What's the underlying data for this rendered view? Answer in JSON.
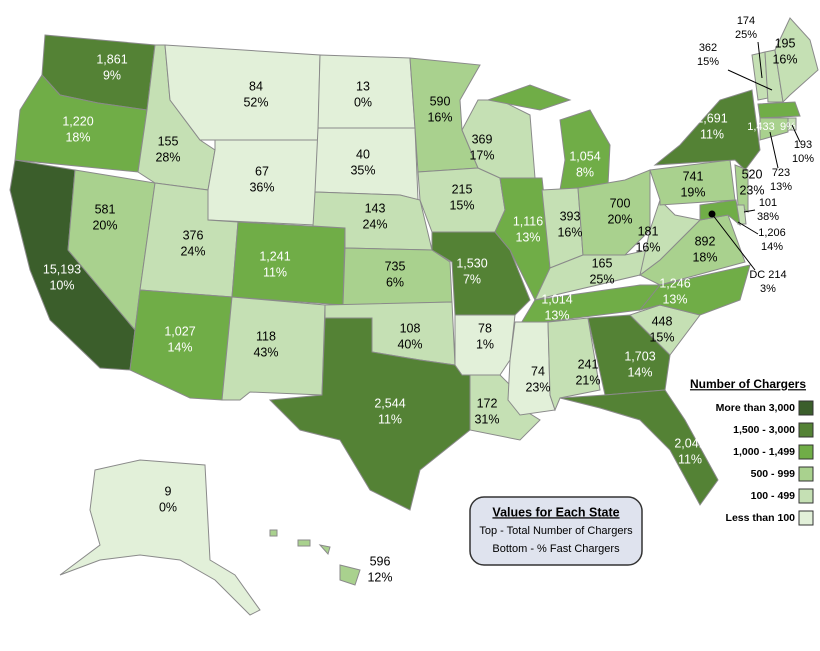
{
  "states": [
    {
      "total": "1,861",
      "fast": "9%",
      "color": "#548235"
    },
    {
      "total": "1,220",
      "fast": "18%",
      "color": "#70ad47"
    },
    {
      "total": "15,193",
      "fast": "10%",
      "color": "#3b5e2b"
    },
    {
      "total": "581",
      "fast": "20%",
      "color": "#a9d18e"
    },
    {
      "total": "155",
      "fast": "28%",
      "color": "#c5e0b4"
    },
    {
      "total": "84",
      "fast": "52%",
      "color": "#e2f0d9"
    },
    {
      "total": "67",
      "fast": "36%",
      "color": "#e2f0d9"
    },
    {
      "total": "376",
      "fast": "24%",
      "color": "#c5e0b4"
    },
    {
      "total": "1,241",
      "fast": "11%",
      "color": "#70ad47"
    },
    {
      "total": "1,027",
      "fast": "14%",
      "color": "#70ad47"
    },
    {
      "total": "118",
      "fast": "43%",
      "color": "#c5e0b4"
    },
    {
      "total": "13",
      "fast": "0%",
      "color": "#e2f0d9"
    },
    {
      "total": "40",
      "fast": "35%",
      "color": "#e2f0d9"
    },
    {
      "total": "143",
      "fast": "24%",
      "color": "#c5e0b4"
    },
    {
      "total": "735",
      "fast": "6%",
      "color": "#a9d18e"
    },
    {
      "total": "108",
      "fast": "40%",
      "color": "#c5e0b4"
    },
    {
      "total": "2,544",
      "fast": "11%",
      "color": "#548235"
    },
    {
      "total": "590",
      "fast": "16%",
      "color": "#a9d18e"
    },
    {
      "total": "215",
      "fast": "15%",
      "color": "#c5e0b4"
    },
    {
      "total": "1,530",
      "fast": "7%",
      "color": "#548235"
    },
    {
      "total": "78",
      "fast": "1%",
      "color": "#e2f0d9"
    },
    {
      "total": "172",
      "fast": "31%",
      "color": "#c5e0b4"
    },
    {
      "total": "369",
      "fast": "17%",
      "color": "#c5e0b4"
    },
    {
      "total": "1,116",
      "fast": "13%",
      "color": "#70ad47"
    },
    {
      "total": "1,054",
      "fast": "8%",
      "color": "#70ad47"
    },
    {
      "total": "393",
      "fast": "16%",
      "color": "#c5e0b4"
    },
    {
      "total": "700",
      "fast": "20%",
      "color": "#a9d18e"
    },
    {
      "total": "165",
      "fast": "25%",
      "color": "#c5e0b4"
    },
    {
      "total": "1,014",
      "fast": "13%",
      "color": "#70ad47"
    },
    {
      "total": "74",
      "fast": "23%",
      "color": "#e2f0d9"
    },
    {
      "total": "241",
      "fast": "21%",
      "color": "#c5e0b4"
    },
    {
      "total": "1,703",
      "fast": "14%",
      "color": "#548235"
    },
    {
      "total": "2,041",
      "fast": "11%",
      "color": "#548235"
    },
    {
      "total": "448",
      "fast": "15%",
      "color": "#c5e0b4"
    },
    {
      "total": "1,246",
      "fast": "13%",
      "color": "#70ad47"
    },
    {
      "total": "892",
      "fast": "18%",
      "color": "#a9d18e"
    },
    {
      "total": "181",
      "fast": "16%",
      "color": "#c5e0b4"
    },
    {
      "total": "741",
      "fast": "19%",
      "color": "#a9d18e"
    },
    {
      "total": "1,691",
      "fast": "11%",
      "color": "#548235"
    },
    {
      "total": "174",
      "fast": "25%",
      "color": "#c5e0b4"
    },
    {
      "total": "362",
      "fast": "15%",
      "color": "#c5e0b4"
    },
    {
      "total": "195",
      "fast": "16%",
      "color": "#c5e0b4"
    },
    {
      "total": "1,433",
      "fast": "9%",
      "color": "#70ad47"
    },
    {
      "total": "193",
      "fast": "10%",
      "color": "#c5e0b4"
    },
    {
      "total": "723",
      "fast": "13%",
      "color": "#a9d18e"
    },
    {
      "total": "520",
      "fast": "23%",
      "color": "#a9d18e"
    },
    {
      "total": "101",
      "fast": "38%",
      "color": "#c5e0b4"
    },
    {
      "total": "1,206",
      "fast": "14%",
      "color": "#70ad47"
    },
    {
      "total": "DC 214",
      "fast": "3%",
      "color": "#000000"
    },
    {
      "total": "9",
      "fast": "0%",
      "color": "#e2f0d9"
    },
    {
      "total": "596",
      "fast": "12%",
      "color": "#a9d18e"
    }
  ],
  "legend": {
    "title": "Number of Chargers",
    "items": [
      {
        "label": "More than 3,000",
        "color": "#3b5e2b"
      },
      {
        "label": "1,500 - 3,000",
        "color": "#548235"
      },
      {
        "label": "1,000 - 1,499",
        "color": "#70ad47"
      },
      {
        "label": "500 - 999",
        "color": "#a9d18e"
      },
      {
        "label": "100 - 499",
        "color": "#c5e0b4"
      },
      {
        "label": "Less than 100",
        "color": "#e2f0d9"
      }
    ]
  },
  "info_box": {
    "title": "Values for Each State",
    "lines": [
      "Top - Total Number of Chargers",
      "Bottom - % Fast Chargers"
    ]
  }
}
